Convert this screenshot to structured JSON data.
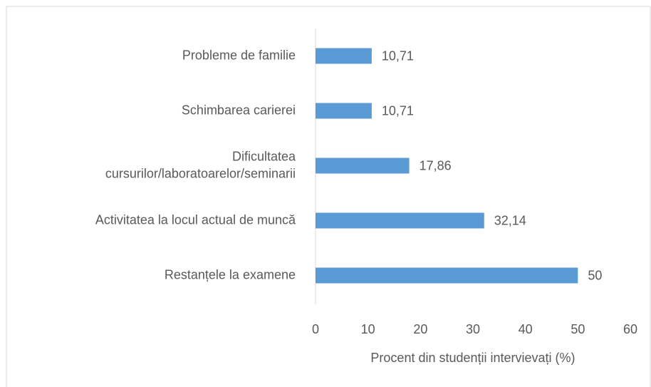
{
  "chart_data": {
    "type": "barh",
    "categories": [
      "Probleme de familie",
      "Schimbarea carierei",
      "Dificultatea\ncursurilor/laboratoarelor/seminarii",
      "Activitatea la locul actual de muncă",
      "Restanțele la examene"
    ],
    "values": [
      10.71,
      10.71,
      17.86,
      32.14,
      50
    ],
    "value_labels": [
      "10,71",
      "10,71",
      "17,86",
      "32,14",
      "50"
    ],
    "color": "#5b9bd5",
    "xlabel": "Procent din studenții intervievați (%)",
    "xlim": [
      0,
      60
    ],
    "xticks": [
      0,
      10,
      20,
      30,
      40,
      50,
      60
    ],
    "grid": false
  }
}
